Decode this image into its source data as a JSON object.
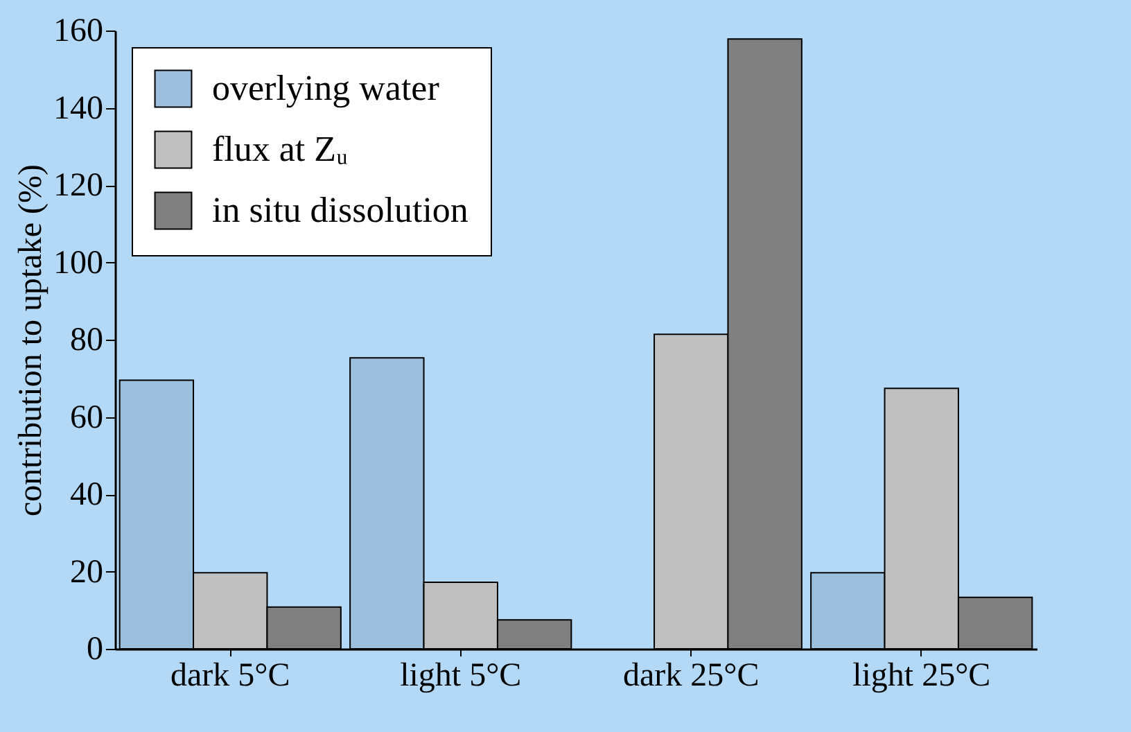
{
  "chart_data": {
    "type": "bar",
    "ylabel": "contribution to uptake (%)",
    "categories": [
      "dark 5°C",
      "light 5°C",
      "dark 25°C",
      "light 25°C"
    ],
    "series": [
      {
        "name": "overlying water",
        "color": "#9bbfdc",
        "values": [
          69.5,
          75.3,
          null,
          19.7
        ]
      },
      {
        "name": "flux at Zᵤ",
        "color": "#c0c0c0",
        "values": [
          19.7,
          17.2,
          81.4,
          67.4
        ]
      },
      {
        "name": "in situ dissolution",
        "color": "#808080",
        "values": [
          10.8,
          7.5,
          157.8,
          13.3
        ]
      }
    ],
    "ylim": [
      0,
      160
    ],
    "yticks": [
      0,
      20,
      40,
      60,
      80,
      100,
      120,
      140,
      160
    ],
    "grid": false,
    "legend": "top left"
  }
}
